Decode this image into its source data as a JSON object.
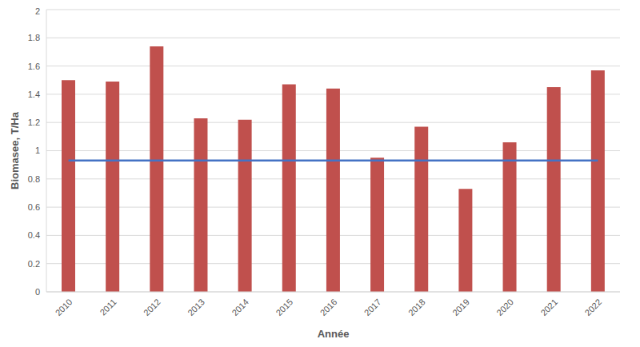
{
  "chart_data": {
    "type": "bar",
    "x_label": "Année",
    "y_label": "Biomasee, T/Ha",
    "categories": [
      "2010",
      "2011",
      "2012",
      "2013",
      "2014",
      "2015",
      "2016",
      "2017",
      "2018",
      "2019",
      "2020",
      "2021",
      "2022"
    ],
    "series": [
      {
        "type": "bar",
        "color": "#c0504d",
        "values": [
          1.5,
          1.49,
          1.74,
          1.23,
          1.22,
          1.47,
          1.44,
          0.95,
          1.17,
          0.73,
          1.06,
          1.45,
          1.57
        ]
      },
      {
        "type": "line",
        "color": "#4472c4",
        "values": [
          0.93,
          0.93,
          0.93,
          0.93,
          0.93,
          0.93,
          0.93,
          0.93,
          0.93,
          0.93,
          0.93,
          0.93,
          0.93
        ]
      }
    ],
    "ylim": [
      0,
      2
    ],
    "yticks": [
      0,
      0.2,
      0.4,
      0.6,
      0.8,
      1,
      1.2,
      1.4,
      1.6,
      1.8,
      2
    ],
    "grid": true
  }
}
